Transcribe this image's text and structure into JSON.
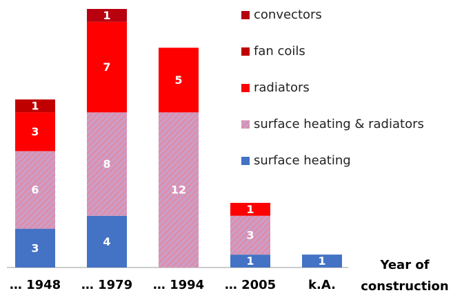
{
  "chart_data": {
    "type": "stacked_bar",
    "categories": [
      "… 1948",
      "… 1979",
      "… 1994",
      "… 2005",
      "k.A."
    ],
    "x_label": "Year of construction",
    "series": [
      {
        "name": "surface heating",
        "color": "#4472c4",
        "values": [
          3,
          4,
          null,
          1,
          1
        ]
      },
      {
        "name": "surface heating & radiators",
        "color": "#c99fc8",
        "pattern": "hatch",
        "values": [
          6,
          8,
          12,
          3,
          null
        ]
      },
      {
        "name": "radiators",
        "color": "#ff0000",
        "values": [
          3,
          7,
          5,
          1,
          null
        ]
      },
      {
        "name": "fan coils",
        "color": "#c00000",
        "values": [
          1,
          null,
          null,
          null,
          null
        ]
      },
      {
        "name": "convectors",
        "color": "#b8000f",
        "values": [
          null,
          1,
          null,
          null,
          null
        ]
      }
    ]
  }
}
